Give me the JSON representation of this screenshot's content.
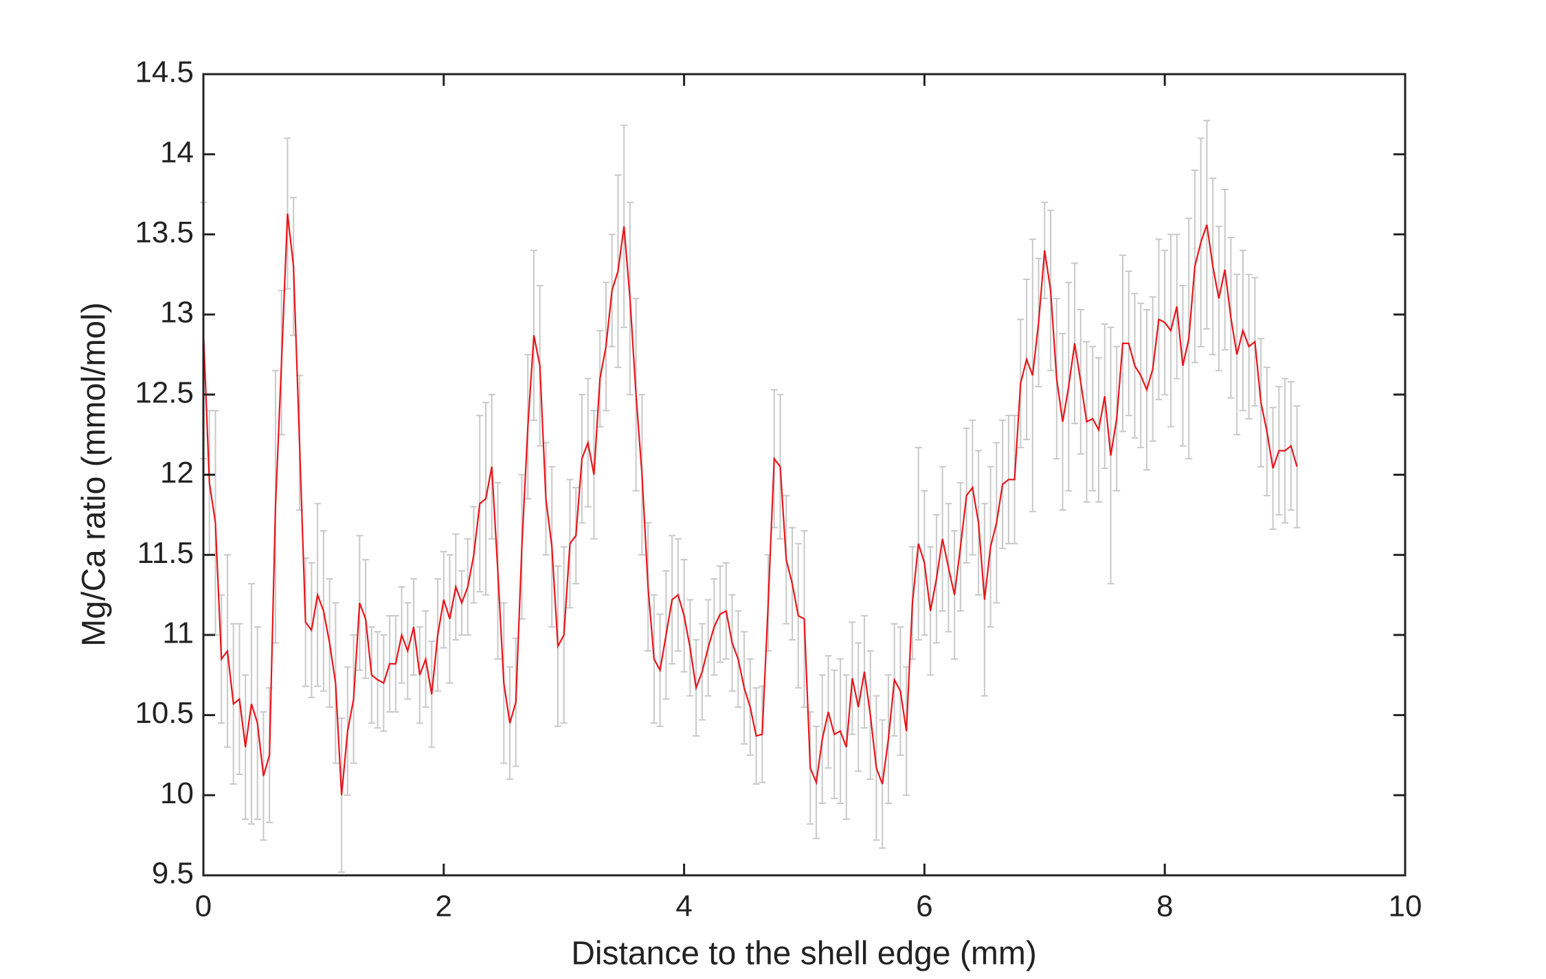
{
  "chart_data": {
    "type": "line",
    "xlabel": "Distance to the shell edge (mm)",
    "ylabel": "Mg/Ca ratio (mmol/mol)",
    "color": "#e8141a",
    "error_color": "#c8c8c8",
    "x": [
      0,
      0.05,
      0.1,
      0.15,
      0.2,
      0.25,
      0.3,
      0.35,
      0.4,
      0.45,
      0.5,
      0.55,
      0.6,
      0.65,
      0.7,
      0.75,
      0.8,
      0.85,
      0.9,
      0.95,
      1.0,
      1.05,
      1.1,
      1.15,
      1.2,
      1.25,
      1.3,
      1.35,
      1.4,
      1.45,
      1.5,
      1.55,
      1.6,
      1.65,
      1.7,
      1.75,
      1.8,
      1.85,
      1.9,
      1.95,
      2.0,
      2.05,
      2.1,
      2.15,
      2.2,
      2.25,
      2.3,
      2.35,
      2.4,
      2.45,
      2.5,
      2.55,
      2.6,
      2.65,
      2.7,
      2.75,
      2.8,
      2.85,
      2.9,
      2.95,
      3.0,
      3.05,
      3.1,
      3.15,
      3.2,
      3.25,
      3.3,
      3.35,
      3.4,
      3.45,
      3.5,
      3.55,
      3.6,
      3.65,
      3.7,
      3.75,
      3.8,
      3.85,
      3.9,
      3.95,
      4.0,
      4.05,
      4.1,
      4.15,
      4.2,
      4.25,
      4.3,
      4.35,
      4.4,
      4.45,
      4.5,
      4.55,
      4.6,
      4.65,
      4.7,
      4.75,
      4.8,
      4.85,
      4.9,
      4.95,
      5.0,
      5.05,
      5.1,
      5.15,
      5.2,
      5.25,
      5.3,
      5.35,
      5.4,
      5.45,
      5.5,
      5.55,
      5.6,
      5.65,
      5.7,
      5.75,
      5.8,
      5.85,
      5.9,
      5.95,
      6.0,
      6.05,
      6.1,
      6.15,
      6.2,
      6.25,
      6.3,
      6.35,
      6.4,
      6.45,
      6.5,
      6.55,
      6.6,
      6.65,
      6.7,
      6.75,
      6.8,
      6.85,
      6.9,
      6.95,
      7.0,
      7.05,
      7.1,
      7.15,
      7.2,
      7.25,
      7.3,
      7.35,
      7.4,
      7.45,
      7.5,
      7.55,
      7.6,
      7.65,
      7.7,
      7.75,
      7.8,
      7.85,
      7.9,
      7.95,
      8.0,
      8.05,
      8.1,
      8.15,
      8.2,
      8.25,
      8.3,
      8.35,
      8.4,
      8.45,
      8.5,
      8.55,
      8.6,
      8.65,
      8.7,
      8.75,
      8.8,
      8.85,
      8.9,
      8.95,
      9.0,
      9.05,
      9.1
    ],
    "values": [
      12.9,
      11.95,
      11.7,
      10.85,
      10.9,
      10.57,
      10.6,
      10.3,
      10.57,
      10.45,
      10.12,
      10.25,
      11.8,
      12.7,
      13.63,
      13.3,
      12.2,
      11.08,
      11.03,
      11.25,
      11.15,
      10.95,
      10.7,
      10.0,
      10.4,
      10.6,
      11.2,
      11.1,
      10.75,
      10.72,
      10.7,
      10.82,
      10.82,
      11.0,
      10.9,
      11.05,
      10.75,
      10.85,
      10.63,
      11.0,
      11.22,
      11.1,
      11.3,
      11.2,
      11.3,
      11.5,
      11.82,
      11.85,
      12.05,
      11.4,
      10.7,
      10.45,
      10.58,
      11.55,
      12.3,
      12.87,
      12.68,
      11.85,
      11.55,
      10.93,
      11.0,
      11.57,
      11.62,
      12.1,
      12.2,
      12.0,
      12.6,
      12.8,
      13.15,
      13.27,
      13.55,
      13.1,
      12.5,
      12.0,
      11.3,
      10.85,
      10.78,
      11.0,
      11.22,
      11.25,
      11.12,
      10.92,
      10.67,
      10.77,
      10.92,
      11.05,
      11.13,
      11.15,
      10.95,
      10.85,
      10.67,
      10.55,
      10.37,
      10.38,
      11.2,
      12.1,
      12.05,
      11.47,
      11.32,
      11.12,
      11.1,
      10.17,
      10.08,
      10.35,
      10.52,
      10.38,
      10.4,
      10.3,
      10.73,
      10.55,
      10.77,
      10.5,
      10.17,
      10.07,
      10.35,
      10.72,
      10.65,
      10.4,
      11.2,
      11.57,
      11.45,
      11.15,
      11.35,
      11.6,
      11.42,
      11.25,
      11.55,
      11.87,
      11.92,
      11.7,
      11.22,
      11.55,
      11.7,
      11.94,
      11.97,
      11.97,
      12.57,
      12.72,
      12.62,
      12.95,
      13.4,
      13.15,
      12.6,
      12.33,
      12.55,
      12.82,
      12.58,
      12.33,
      12.35,
      12.28,
      12.49,
      12.12,
      12.35,
      12.82,
      12.82,
      12.68,
      12.62,
      12.53,
      12.66,
      12.97,
      12.95,
      12.9,
      13.05,
      12.68,
      12.85,
      13.3,
      13.45,
      13.56,
      13.3,
      13.1,
      13.28,
      12.98,
      12.75,
      12.9,
      12.8,
      12.83,
      12.45,
      12.27,
      12.04,
      12.15,
      12.15,
      12.18,
      12.05
    ],
    "errors": [
      0.8,
      0.45,
      0.7,
      0.4,
      0.6,
      0.5,
      0.47,
      0.45,
      0.75,
      0.6,
      0.4,
      0.42,
      0.85,
      0.45,
      0.47,
      0.43,
      0.42,
      0.4,
      0.42,
      0.57,
      0.5,
      0.4,
      0.5,
      0.48,
      0.4,
      0.4,
      0.42,
      0.37,
      0.3,
      0.3,
      0.3,
      0.3,
      0.3,
      0.3,
      0.3,
      0.3,
      0.3,
      0.3,
      0.33,
      0.35,
      0.3,
      0.4,
      0.33,
      0.2,
      0.3,
      0.3,
      0.55,
      0.6,
      0.45,
      0.55,
      0.5,
      0.35,
      0.4,
      0.45,
      0.45,
      0.53,
      0.5,
      0.35,
      0.5,
      0.5,
      0.55,
      0.4,
      0.3,
      0.4,
      0.4,
      0.4,
      0.3,
      0.4,
      0.35,
      0.6,
      0.63,
      0.6,
      0.6,
      0.5,
      0.4,
      0.4,
      0.35,
      0.4,
      0.4,
      0.35,
      0.35,
      0.3,
      0.3,
      0.3,
      0.3,
      0.3,
      0.3,
      0.3,
      0.3,
      0.3,
      0.35,
      0.3,
      0.3,
      0.3,
      0.3,
      0.43,
      0.45,
      0.4,
      0.35,
      0.45,
      0.55,
      0.35,
      0.35,
      0.4,
      0.35,
      0.4,
      0.45,
      0.45,
      0.35,
      0.4,
      0.35,
      0.4,
      0.45,
      0.4,
      0.4,
      0.35,
      0.4,
      0.4,
      0.35,
      0.6,
      0.45,
      0.4,
      0.4,
      0.45,
      0.4,
      0.4,
      0.4,
      0.42,
      0.42,
      0.45,
      0.6,
      0.5,
      0.5,
      0.4,
      0.4,
      0.4,
      0.4,
      0.5,
      0.85,
      0.4,
      0.3,
      0.5,
      0.5,
      0.55,
      0.65,
      0.5,
      0.45,
      0.5,
      0.45,
      0.45,
      0.45,
      0.8,
      0.45,
      0.55,
      0.45,
      0.45,
      0.45,
      0.5,
      0.45,
      0.5,
      0.45,
      0.6,
      0.45,
      0.5,
      0.75,
      0.6,
      0.65,
      0.65,
      0.55,
      0.45,
      0.5,
      0.5,
      0.5,
      0.5,
      0.45,
      0.4,
      0.4,
      0.4,
      0.38,
      0.4,
      0.45,
      0.4,
      0.38
    ],
    "xlim": [
      0,
      10
    ],
    "xticks": [
      0,
      2,
      4,
      6,
      8,
      10
    ],
    "ylim": [
      9.5,
      14.5
    ],
    "yticks": [
      9.5,
      10,
      10.5,
      11,
      11.5,
      12,
      12.5,
      13,
      13.5,
      14,
      14.5
    ]
  }
}
